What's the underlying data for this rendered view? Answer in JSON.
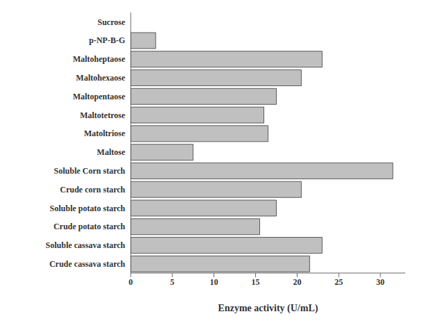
{
  "chart_data": {
    "type": "bar",
    "orientation": "horizontal",
    "categories": [
      "Crude cassava starch",
      "Soluble cassava starch",
      "Crude potato starch",
      "Soluble potato starch",
      "Crude corn starch",
      "Soluble Corn starch",
      "Maltose",
      "Matoltriose",
      "Maltotetrose",
      "Maltopentaose",
      "Maltohexaose",
      "Maltoheptaose",
      "p-NP-B-G",
      "Sucrose"
    ],
    "values": [
      21.5,
      23.0,
      15.5,
      17.5,
      20.5,
      31.5,
      7.5,
      16.5,
      16.0,
      17.5,
      20.5,
      23.0,
      3.0,
      0.0
    ],
    "color": "#C0C0C0",
    "xlabel": "Enzyme activity (U/mL)",
    "xlim": [
      0,
      33
    ],
    "xticks": [
      0,
      5,
      10,
      15,
      20,
      25,
      30
    ]
  }
}
